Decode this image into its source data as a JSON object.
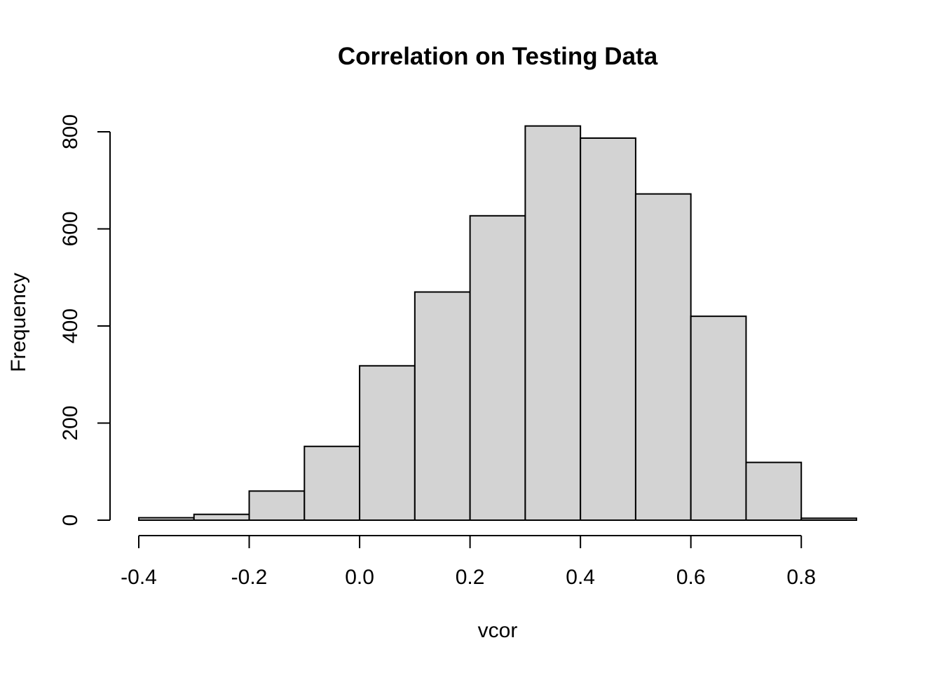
{
  "chart_data": {
    "type": "bar",
    "title": "Correlation on Testing Data",
    "xlabel": "vcor",
    "ylabel": "Frequency",
    "bin_edges": [
      -0.4,
      -0.3,
      -0.2,
      -0.1,
      0.0,
      0.1,
      0.2,
      0.3,
      0.4,
      0.5,
      0.6,
      0.7,
      0.8,
      0.9
    ],
    "values": [
      5,
      12,
      60,
      152,
      318,
      470,
      627,
      812,
      787,
      672,
      420,
      119,
      4
    ],
    "xlim": [
      -0.4,
      0.9
    ],
    "ylim": [
      0,
      800
    ],
    "x_ticks": [
      -0.4,
      -0.2,
      0.0,
      0.2,
      0.4,
      0.6,
      0.8
    ],
    "x_tick_labels": [
      "-0.4",
      "-0.2",
      "0.0",
      "0.2",
      "0.4",
      "0.6",
      "0.8"
    ],
    "y_ticks": [
      0,
      200,
      400,
      600,
      800
    ],
    "y_tick_labels": [
      "0",
      "200",
      "400",
      "600",
      "800"
    ],
    "grid": false,
    "legend": "none",
    "colors": {
      "bar_fill": "#d3d3d3",
      "bar_stroke": "#000000",
      "background": "#ffffff"
    }
  }
}
